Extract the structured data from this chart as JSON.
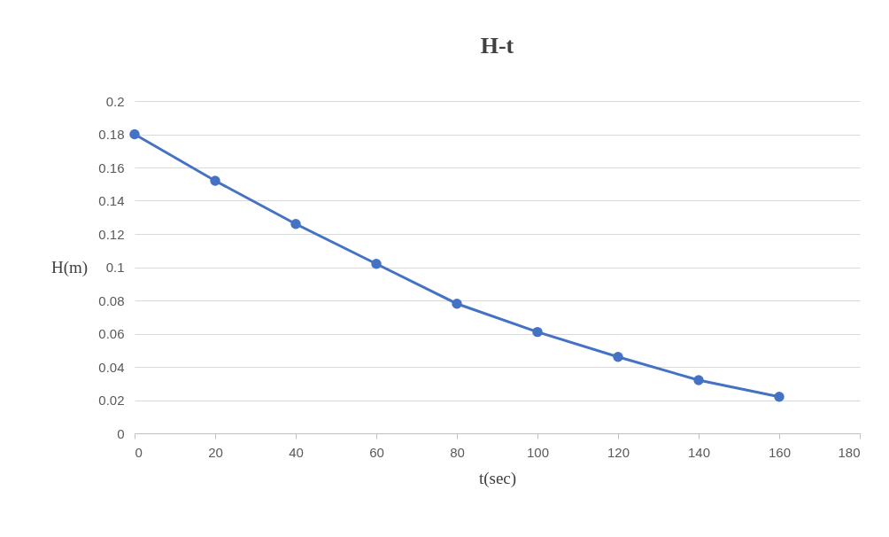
{
  "chart_data": {
    "type": "line",
    "title": "H-t",
    "xlabel": "t(sec)",
    "ylabel": "H(m)",
    "x": [
      0,
      20,
      40,
      60,
      80,
      100,
      120,
      140,
      160
    ],
    "series": [
      {
        "color": "#4472c4",
        "values": [
          0.18,
          0.152,
          0.126,
          0.102,
          0.078,
          0.061,
          0.046,
          0.032,
          0.022
        ]
      }
    ],
    "xlim": [
      0,
      180
    ],
    "xticks": [
      0,
      20,
      40,
      60,
      80,
      100,
      120,
      140,
      160,
      180
    ],
    "ylim": [
      0,
      0.2
    ],
    "yticks": [
      0,
      0.02,
      0.04,
      0.06,
      0.08,
      0.1,
      0.12,
      0.14,
      0.16,
      0.18,
      0.2
    ],
    "grid": "y",
    "marker": "circle",
    "line_style": "solid"
  }
}
